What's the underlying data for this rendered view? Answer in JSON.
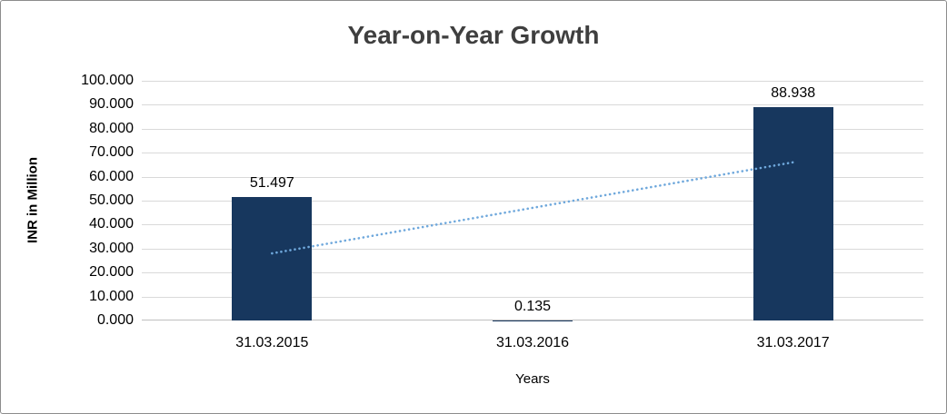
{
  "chart_data": {
    "type": "bar",
    "title": "Year-on-Year Growth",
    "xlabel": "Years",
    "ylabel": "INR in Million",
    "categories": [
      "31.03.2015",
      "31.03.2016",
      "31.03.2017"
    ],
    "values": [
      51.497,
      0.135,
      88.938
    ],
    "value_labels": [
      "51.497",
      "0.135",
      "88.938"
    ],
    "ylim": [
      0,
      100
    ],
    "y_tick_step": 10,
    "y_tick_labels": [
      "0.000",
      "10.000",
      "20.000",
      "30.000",
      "40.000",
      "50.000",
      "60.000",
      "70.000",
      "80.000",
      "90.000",
      "100.000"
    ],
    "grid": true,
    "legend": "none",
    "bar_color": "#17375E",
    "trendline": {
      "style": "dotted",
      "color": "#6FA8DC",
      "start_category_index": 0,
      "start_value": 28,
      "end_category_index": 2,
      "end_value": 66
    }
  },
  "colors": {
    "gridline": "#D9D9D9",
    "axis_line": "#BFBFBF",
    "text": "#000000",
    "title_text": "#3F3F3F",
    "background": "#FFFFFF",
    "border": "#8C8C8C"
  }
}
